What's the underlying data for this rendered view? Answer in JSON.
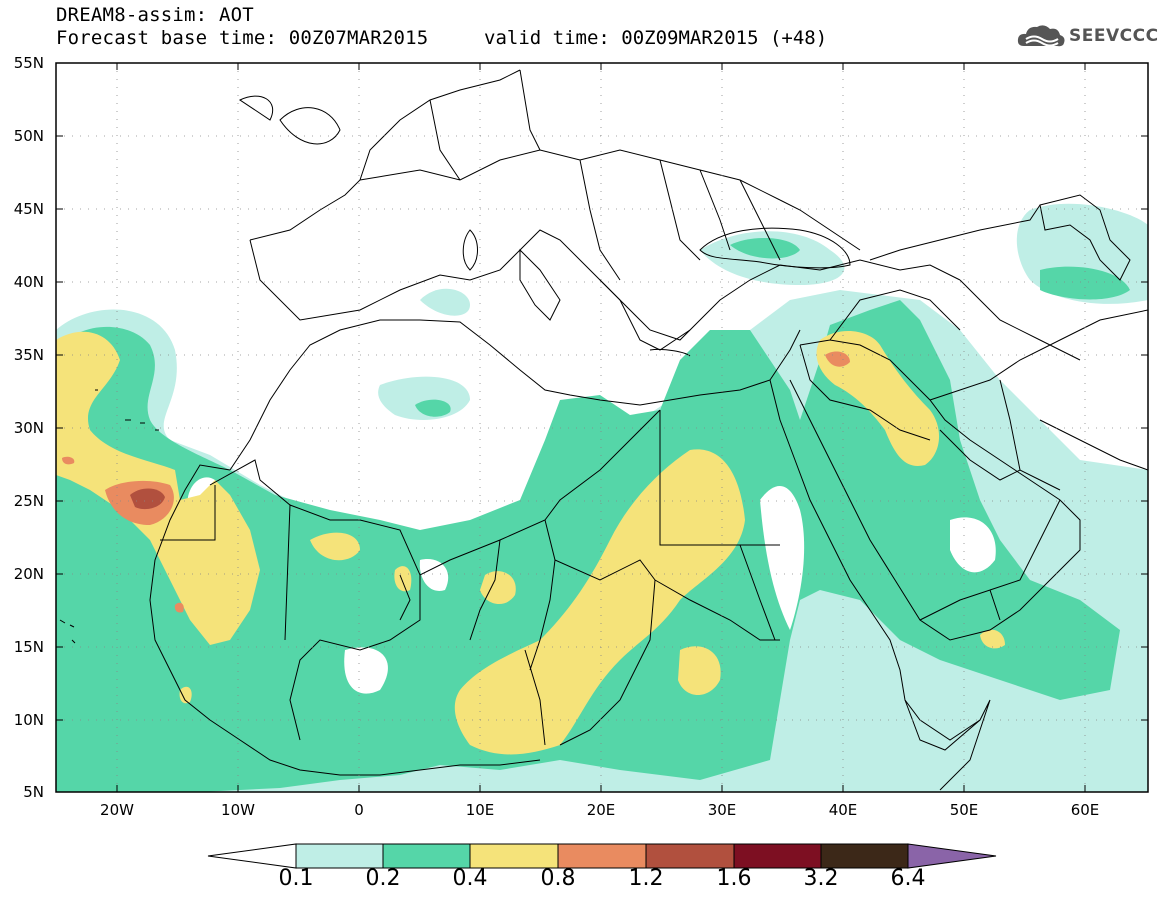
{
  "header": {
    "line1": "DREAM8-assim: AOT",
    "line2": "Forecast base time: 00Z07MAR2015",
    "valid": "valid time: 00Z09MAR2015 (+48)",
    "logo_text": "SEEVCCC"
  },
  "map": {
    "region": "North Africa, Mediterranean and Middle East",
    "projection": "lat-lon",
    "lat_range": [
      5,
      55
    ],
    "lon_range": [
      -25,
      65
    ],
    "lat_labels": [
      "55N",
      "50N",
      "45N",
      "40N",
      "35N",
      "30N",
      "25N",
      "20N",
      "15N",
      "10N",
      "5N"
    ],
    "lon_labels": [
      "20W",
      "10W",
      "0",
      "10E",
      "20E",
      "30E",
      "40E",
      "50E",
      "60E"
    ],
    "gridlines": "dotted"
  },
  "colorbar": {
    "labels": [
      "0.1",
      "0.2",
      "0.4",
      "0.8",
      "1.2",
      "1.6",
      "3.2",
      "6.4"
    ],
    "colors": [
      "#ffffff",
      "#bfeee6",
      "#55d6a8",
      "#f5e37a",
      "#e98b60",
      "#b1503e",
      "#7d0f22",
      "#3c2818",
      "#8a64a8"
    ]
  },
  "colors": {
    "level1": "#bfeee6",
    "level2": "#55d6a8",
    "level3": "#f5e37a",
    "level4": "#e98b60",
    "level5": "#b1503e",
    "border": "#000000"
  }
}
